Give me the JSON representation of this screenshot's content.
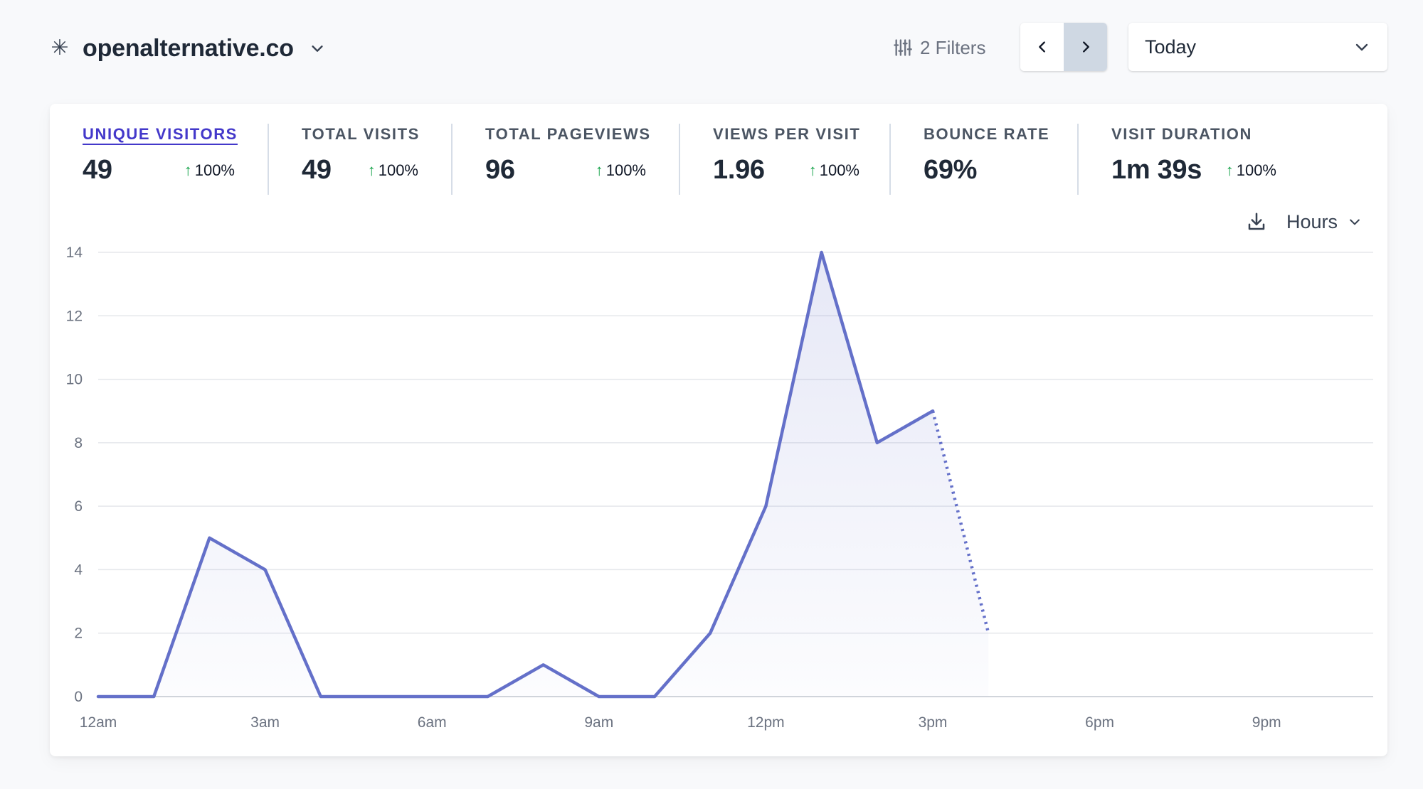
{
  "header": {
    "site_name": "openalternative.co",
    "filters_label": "2 Filters",
    "date_range": "Today"
  },
  "icons": {
    "site_logo": "asterisk-icon",
    "site_caret": "chevron-down-icon",
    "filters": "sliders-icon",
    "prev": "chevron-left-icon",
    "next": "chevron-right-icon",
    "date_caret": "chevron-down-icon",
    "download": "download-icon",
    "interval_caret": "chevron-down-icon",
    "change_arrow": "arrow-up-icon"
  },
  "stats": [
    {
      "label": "UNIQUE VISITORS",
      "value": "49",
      "change": "100%",
      "active": true
    },
    {
      "label": "TOTAL VISITS",
      "value": "49",
      "change": "100%"
    },
    {
      "label": "TOTAL PAGEVIEWS",
      "value": "96",
      "change": "100%"
    },
    {
      "label": "VIEWS PER VISIT",
      "value": "1.96",
      "change": "100%"
    },
    {
      "label": "BOUNCE RATE",
      "value": "69%",
      "change": ""
    },
    {
      "label": "VISIT DURATION",
      "value": "1m 39s",
      "change": "100%"
    }
  ],
  "chart_controls": {
    "interval": "Hours"
  },
  "colors": {
    "line": "#6470c9",
    "active_metric": "#4338ca",
    "positive_change": "#16a34a",
    "grid": "#e5e7eb"
  },
  "chart_data": {
    "type": "area",
    "x_tick_labels": [
      "12am",
      "3am",
      "6am",
      "9am",
      "12pm",
      "3pm",
      "6pm",
      "9pm"
    ],
    "y_ticks": [
      0,
      2,
      4,
      6,
      8,
      10,
      12,
      14
    ],
    "ylim": [
      0,
      14
    ],
    "hours": 24,
    "series": [
      {
        "values": [
          0,
          0,
          5,
          4,
          0,
          0,
          0,
          0,
          1,
          0,
          0,
          2,
          6,
          14,
          8,
          9
        ],
        "style": "solid"
      },
      {
        "values_from_hour": 15,
        "values": [
          9,
          2
        ],
        "style": "dotted"
      }
    ],
    "grid": true
  }
}
